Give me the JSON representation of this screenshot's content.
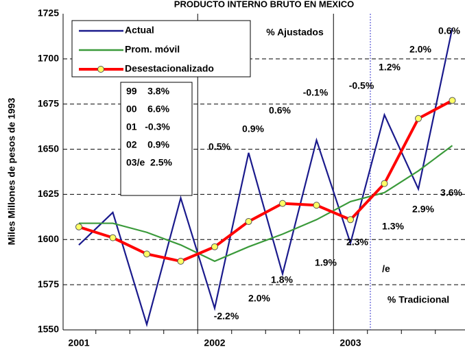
{
  "chart_data": {
    "type": "line",
    "title": "PRODUCTO INTERNO BRUTO EN MEXICO",
    "y_label": "Miles Millones de pesos de 1993",
    "categories": [
      "2001",
      null,
      null,
      null,
      "2002",
      null,
      null,
      null,
      "2003",
      null,
      null,
      null
    ],
    "series": [
      {
        "name": "Actual",
        "color": "#1a1a8c",
        "values": [
          1597,
          1615,
          1553,
          1623,
          1562,
          1648,
          1581,
          1655,
          1598,
          1669,
          1628,
          1717
        ]
      },
      {
        "name": "Prom. móvil",
        "color": "#3a9a3a",
        "values": [
          1609,
          1609,
          1604,
          1597,
          1588,
          1596,
          1603,
          1611,
          1621,
          1626,
          1638,
          1652
        ]
      },
      {
        "name": "Desestacionalizado",
        "color": "#ff0000",
        "marker_color": "#ffff66",
        "values": [
          1607,
          1601,
          1592,
          1588,
          1596,
          1610,
          1620,
          1619,
          1611,
          1631,
          1667,
          1677
        ]
      }
    ],
    "ylim": [
      1550,
      1725
    ],
    "yticks": [
      1550,
      1575,
      1600,
      1625,
      1650,
      1675,
      1700,
      1725
    ],
    "grid": true,
    "annual_table": [
      "99    3.8%",
      "00    6.6%",
      "01   -0.3%",
      "02    0.9%",
      "03/e  2.5%"
    ],
    "annotations": [
      "% Ajustados",
      "0.6%",
      "2.0%",
      "1.2%",
      "-0.5%",
      "-0.1%",
      "0.6%",
      "0.9%",
      "0.5%",
      "3.6%",
      "2.9%",
      "1.3%",
      "2.3%",
      "1.9%",
      "1.8%",
      "2.0%",
      "-2.2%",
      "/e",
      "% Tradicional"
    ]
  }
}
